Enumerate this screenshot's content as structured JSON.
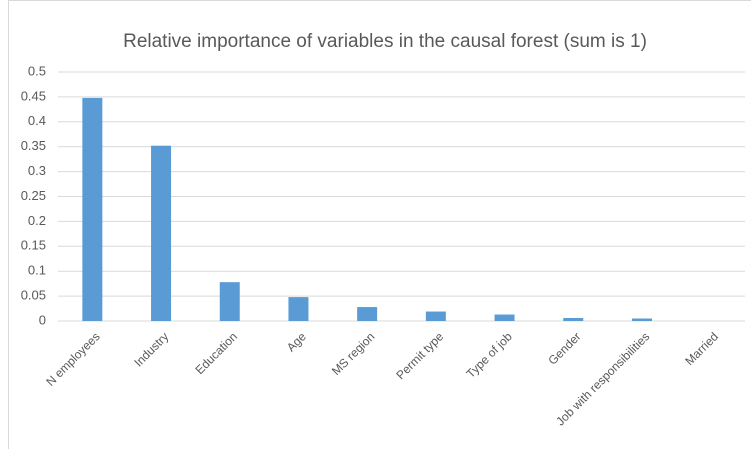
{
  "chart_data": {
    "type": "bar",
    "title": "Relative importance of variables in the causal forest (sum is 1)",
    "categories": [
      "N employees",
      "Industry",
      "Education",
      "Age",
      "MS region",
      "Permit type",
      "Type of job",
      "Gender",
      "Job with responsibilities",
      "Married"
    ],
    "values": [
      0.448,
      0.352,
      0.078,
      0.048,
      0.028,
      0.019,
      0.013,
      0.006,
      0.005,
      0
    ],
    "color": "#5b9bd5",
    "ylim": [
      0,
      0.5
    ],
    "yticks": [
      0,
      0.05,
      0.1,
      0.15,
      0.2,
      0.25,
      0.3,
      0.35,
      0.4,
      0.45,
      0.5
    ],
    "grid": true
  }
}
